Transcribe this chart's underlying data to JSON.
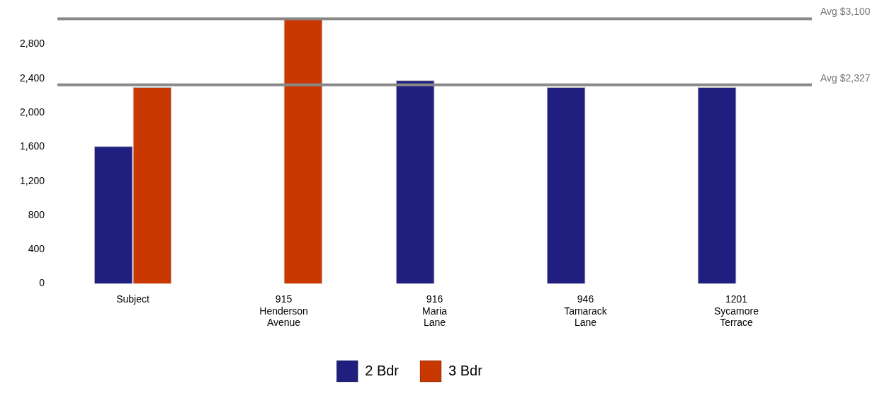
{
  "chart_data": {
    "type": "bar",
    "categories": [
      "Subject",
      "915 Henderson Avenue",
      "916 Maria Lane",
      "946 Tamarack Lane",
      "1201 Sycamore Terrace"
    ],
    "series": [
      {
        "name": "2 Bdr",
        "color": "#201f80",
        "values": [
          1610,
          null,
          2380,
          2300,
          2300
        ]
      },
      {
        "name": "3 Bdr",
        "color": "#c83800",
        "values": [
          2300,
          3100,
          null,
          null,
          null
        ]
      }
    ],
    "ylim": [
      0,
      3100
    ],
    "yticks": [
      0,
      400,
      800,
      {
        "value": 1200,
        "label": "1,200"
      },
      {
        "value": 1600,
        "label": "1,600"
      },
      {
        "value": 2000,
        "label": "2,000"
      },
      {
        "value": 2400,
        "label": "2,400"
      },
      {
        "value": 2800,
        "label": "2,800"
      }
    ],
    "grid": false,
    "legend": "bottom",
    "ref_lines": [
      {
        "axis": "y",
        "value": 3100,
        "label": "Avg $3,100",
        "color": "#888888"
      },
      {
        "axis": "y",
        "value": 2327,
        "label": "Avg $2,327",
        "color": "#888888"
      }
    ]
  }
}
